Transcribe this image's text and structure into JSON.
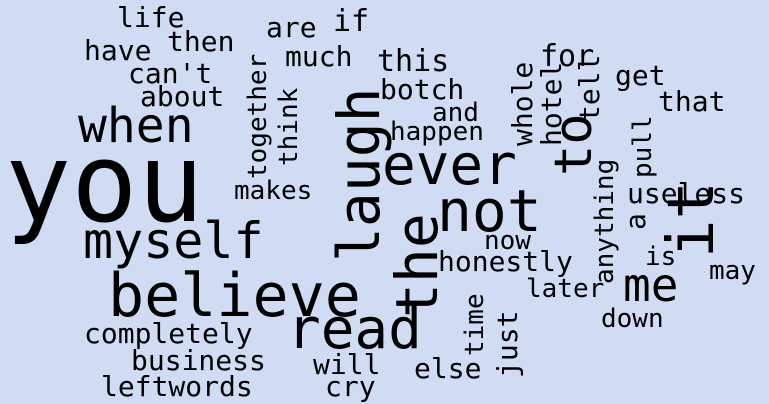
{
  "background_color": "#cfdcf3",
  "text_color": "#000000",
  "words": {
    "life": "life",
    "if": "if",
    "are": "are",
    "then": "then",
    "have": "have",
    "much": "much",
    "for": "for",
    "cant": "can't",
    "this": "this",
    "get": "get",
    "tell": "tell",
    "that": "that",
    "about": "about",
    "botch": "botch",
    "whole": "whole",
    "hotel": "hotel",
    "when": "when",
    "together": "together",
    "think": "think",
    "and": "and",
    "happen": "happen",
    "to": "to",
    "laugh": "laugh",
    "you": "you",
    "ever": "ever",
    "it": "it",
    "pull": "pull",
    "makes": "makes",
    "not": "not",
    "useless": "useless",
    "myself": "myself",
    "the": "the",
    "anything": "anything",
    "a": "a",
    "now": "now",
    "honestly": "honestly",
    "is": "is",
    "may": "may",
    "me": "me",
    "believe": "believe",
    "later": "later",
    "read": "read",
    "time": "time",
    "just": "just",
    "down": "down",
    "completely": "completely",
    "business": "business",
    "will": "will",
    "else": "else",
    "leftwords": "leftwords",
    "cry": "cry"
  }
}
